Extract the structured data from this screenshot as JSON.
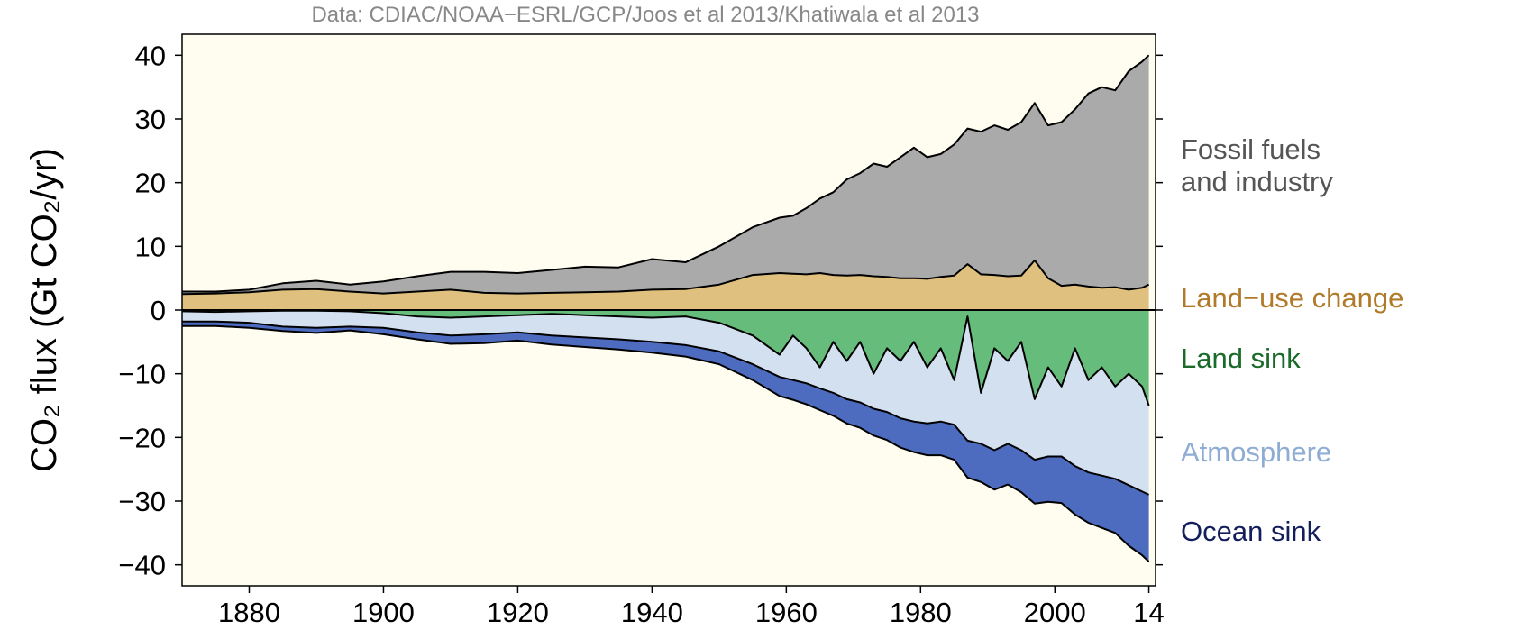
{
  "chart_data": {
    "type": "stacked_area",
    "subtitle": "Data: CDIAC/NOAA−ESRL/GCP/Joos et al 2013/Khatiwala et al 2013",
    "y_label": "CO₂ flux (Gt CO₂/yr)",
    "x": [
      1870,
      1875,
      1880,
      1885,
      1890,
      1895,
      1900,
      1905,
      1910,
      1915,
      1920,
      1925,
      1930,
      1935,
      1940,
      1945,
      1950,
      1955,
      1959,
      1961,
      1963,
      1965,
      1967,
      1969,
      1971,
      1973,
      1975,
      1977,
      1979,
      1981,
      1983,
      1985,
      1987,
      1989,
      1991,
      1993,
      1995,
      1997,
      1999,
      2001,
      2003,
      2005,
      2007,
      2009,
      2011,
      2013,
      2014
    ],
    "series": [
      {
        "name": "Fossil fuels and industry",
        "color": "#aaaaaa",
        "label_color": "#555555",
        "values": [
          0.4,
          0.3,
          0.4,
          1.0,
          1.3,
          1.1,
          1.9,
          2.4,
          2.8,
          3.3,
          3.2,
          3.6,
          4.0,
          3.8,
          4.8,
          4.2,
          6.0,
          7.5,
          8.7,
          9.1,
          10.4,
          11.7,
          13.0,
          15.1,
          16.0,
          17.7,
          17.3,
          19.0,
          20.5,
          19.1,
          19.3,
          20.6,
          21.3,
          22.4,
          23.5,
          23.0,
          24.1,
          24.7,
          24.0,
          25.7,
          27.5,
          30.3,
          31.5,
          30.9,
          34.3,
          35.5,
          36.0
        ]
      },
      {
        "name": "Land−use change",
        "color": "#e0c07e",
        "label_color": "#b07a2a",
        "values": [
          2.5,
          2.6,
          2.8,
          3.2,
          3.3,
          2.9,
          2.6,
          2.9,
          3.2,
          2.7,
          2.6,
          2.7,
          2.8,
          2.9,
          3.2,
          3.3,
          4.0,
          5.5,
          5.8,
          5.7,
          5.6,
          5.8,
          5.5,
          5.4,
          5.5,
          5.3,
          5.2,
          5.0,
          5.0,
          4.9,
          5.2,
          5.4,
          7.2,
          5.6,
          5.5,
          5.3,
          5.4,
          7.8,
          5.0,
          3.8,
          4.0,
          3.7,
          3.5,
          3.6,
          3.2,
          3.5,
          4.0
        ]
      },
      {
        "name": "Land sink",
        "color": "#66bd7b",
        "label_color": "#1a6b2a",
        "values": [
          -0.2,
          -0.3,
          -0.2,
          -0.1,
          -0.1,
          -0.2,
          -0.5,
          -1.0,
          -1.2,
          -1.0,
          -0.8,
          -0.6,
          -0.8,
          -1.0,
          -1.2,
          -1.0,
          -2.0,
          -4.0,
          -7,
          -4,
          -6,
          -9,
          -5,
          -8,
          -5,
          -10,
          -6,
          -8,
          -5,
          -9,
          -6,
          -11,
          -1,
          -13,
          -6,
          -8,
          -5,
          -14,
          -9,
          -12,
          -6,
          -11,
          -9,
          -12,
          -10,
          -12,
          -15
        ]
      },
      {
        "name": "Atmosphere",
        "color": "#d3e0ef",
        "label_color": "#8fadd3",
        "values": [
          -1.6,
          -1.5,
          -1.8,
          -2.5,
          -2.7,
          -2.4,
          -2.3,
          -2.5,
          -2.8,
          -2.8,
          -2.7,
          -3.4,
          -3.5,
          -3.6,
          -3.8,
          -4.5,
          -4.5,
          -4.5,
          -3.5,
          -7,
          -5.5,
          -3.3,
          -8,
          -6,
          -9.5,
          -5.5,
          -10,
          -9,
          -12.5,
          -8.8,
          -11.5,
          -7,
          -19.5,
          -8,
          -16,
          -13,
          -17,
          -9.5,
          -14,
          -11,
          -18.5,
          -14.5,
          -17,
          -14.5,
          -17.5,
          -16.5,
          -14
        ]
      },
      {
        "name": "Ocean sink",
        "color": "#4d6cbf",
        "label_color": "#141e5a",
        "values": [
          -0.7,
          -0.7,
          -0.8,
          -0.7,
          -0.8,
          -0.6,
          -1.0,
          -1.1,
          -1.3,
          -1.4,
          -1.3,
          -1.4,
          -1.5,
          -1.6,
          -1.7,
          -1.8,
          -2.0,
          -2.5,
          -3.0,
          -3.1,
          -3.3,
          -3.4,
          -3.6,
          -3.8,
          -4.0,
          -4.2,
          -4.4,
          -4.6,
          -4.8,
          -5.0,
          -5.3,
          -5.5,
          -5.8,
          -6.0,
          -6.2,
          -6.4,
          -6.6,
          -6.9,
          -7.1,
          -7.3,
          -7.6,
          -7.9,
          -8.2,
          -8.5,
          -9.5,
          -10.0,
          -10.5
        ]
      }
    ],
    "xlim": [
      1870,
      2015
    ],
    "ylim": [
      -43.3,
      43.3
    ],
    "xticks": [
      1880,
      1900,
      1920,
      1940,
      1960,
      1980,
      2000,
      {
        "value": 2014,
        "label": "14"
      }
    ],
    "yticks": [
      {
        "value": -40,
        "label": "−40"
      },
      {
        "value": -30,
        "label": "−30"
      },
      {
        "value": -20,
        "label": "−20"
      },
      {
        "value": -10,
        "label": "−10"
      },
      0,
      10,
      20,
      30,
      40
    ],
    "background": "#fffdf0"
  }
}
